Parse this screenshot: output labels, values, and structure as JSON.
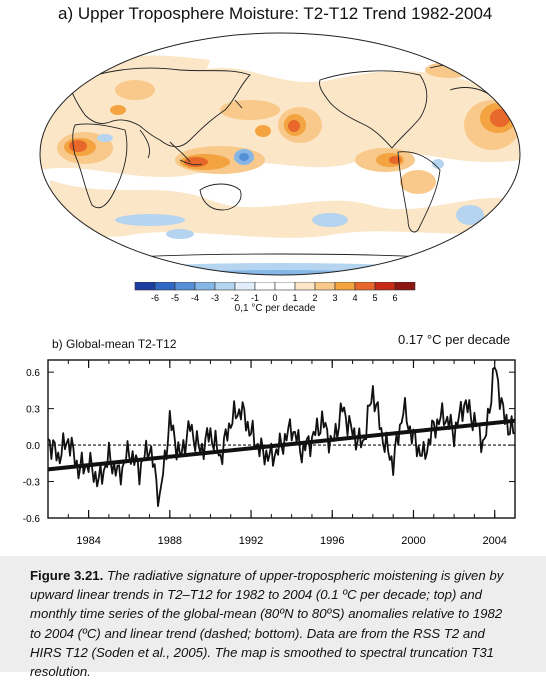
{
  "panel_a": {
    "title": "a) Upper Troposphere Moisture:  T2-T12 Trend 1982-2004",
    "colorbar": {
      "labels": [
        "-6",
        "-5",
        "-4",
        "-3",
        "-2",
        "-1",
        "0",
        "1",
        "2",
        "3",
        "4",
        "5",
        "6"
      ],
      "colors": [
        "#1a3f9e",
        "#2f67c4",
        "#5590d6",
        "#86b6e6",
        "#b5d4ef",
        "#e2eef9",
        "#ffffff",
        "#ffffff",
        "#fbe7c7",
        "#f8c98a",
        "#f3a33f",
        "#e8672a",
        "#c72b17",
        "#8c1611"
      ],
      "unit": "0,1 °C per decade"
    }
  },
  "panel_b": {
    "title": "b) Global-mean T2-T12",
    "trend_label": "0.17 °C per decade"
  },
  "chart_data": {
    "type": "line",
    "xlim": [
      1982,
      2005
    ],
    "ylim": [
      -0.6,
      0.7
    ],
    "x_ticks": [
      "1984",
      "1988",
      "1992",
      "1996",
      "2000",
      "2004"
    ],
    "y_ticks": [
      "0.6",
      "0.3",
      "0.0",
      "-0.3",
      "-0.6"
    ],
    "grid": false,
    "series": [
      {
        "type": "monthly",
        "x": [
          1982.0,
          1982.5,
          1983.0,
          1983.5,
          1984.0,
          1984.5,
          1985.0,
          1985.5,
          1986.0,
          1986.5,
          1987.0,
          1987.5,
          1988.0,
          1988.5,
          1989.0,
          1989.5,
          1990.0,
          1990.5,
          1991.0,
          1991.5,
          1992.0,
          1992.5,
          1993.0,
          1993.5,
          1994.0,
          1994.5,
          1995.0,
          1995.5,
          1996.0,
          1996.5,
          1997.0,
          1997.5,
          1998.0,
          1998.5,
          1999.0,
          1999.5,
          2000.0,
          2000.5,
          2001.0,
          2001.5,
          2002.0,
          2002.5,
          2003.0,
          2003.5,
          2004.0,
          2004.5,
          2005.0
        ],
        "values": [
          0.05,
          -0.1,
          0.05,
          -0.2,
          -0.15,
          -0.3,
          -0.1,
          -0.25,
          -0.05,
          -0.2,
          0.0,
          -0.45,
          0.2,
          -0.1,
          0.15,
          -0.05,
          0.1,
          -0.1,
          0.2,
          0.3,
          0.1,
          -0.05,
          -0.1,
          0.0,
          0.15,
          -0.05,
          0.05,
          0.2,
          0.0,
          0.3,
          0.1,
          0.0,
          0.45,
          0.05,
          -0.15,
          0.3,
          0.05,
          -0.1,
          0.15,
          0.25,
          0.1,
          0.35,
          0.2,
          0.0,
          0.65,
          0.2,
          0.1
        ]
      },
      {
        "type": "linear trend",
        "x": [
          1982,
          2005
        ],
        "values": [
          -0.2,
          0.2
        ]
      }
    ]
  },
  "caption": {
    "figure_label": "Figure 3.21.",
    "text": "The radiative signature of upper-tropospheric moistening is given by upward linear trends in T2–T12 for 1982 to 2004 (0.1 ºC per decade; top) and monthly time series of the global-mean (80ºN to 80ºS) anomalies relative to 1982 to 2004 (ºC) and linear trend (dashed; bottom). Data are from the RSS T2 and HIRS T12 (Soden et al., 2005). The map is smoothed to spectral truncation T31 resolution."
  }
}
